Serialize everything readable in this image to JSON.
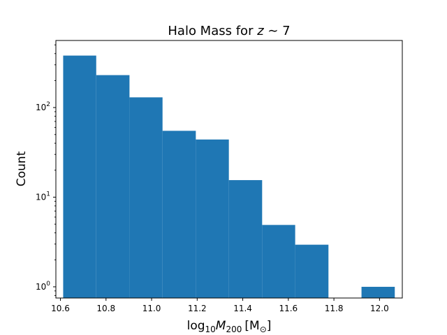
{
  "chart_data": {
    "type": "bar",
    "title": {
      "prefix": "Halo Mass for ",
      "var": "z",
      "suffix": " ∼ 7"
    },
    "xlabel": {
      "prefix": "log",
      "prefix_sub": "10",
      "var": "M",
      "var_sub": "200",
      "unit": "[M",
      "unit_sub": "⊙",
      "unit_close": "]"
    },
    "ylabel": "Count",
    "x_scale": "linear",
    "y_scale": "log",
    "xlim": [
      10.58,
      12.1
    ],
    "ylim": [
      0.75,
      560
    ],
    "bin_edges": [
      10.612,
      10.757,
      10.903,
      11.048,
      11.194,
      11.339,
      11.485,
      11.63,
      11.776,
      11.921,
      12.067
    ],
    "counts": [
      380,
      230,
      130,
      55,
      44,
      15.5,
      4.9,
      2.95,
      0,
      1
    ],
    "bar_color": "#1f77b4",
    "x_ticks": [
      "10.6",
      "10.8",
      "11.0",
      "11.2",
      "11.4",
      "11.6",
      "11.8",
      "12.0"
    ],
    "y_ticks": [
      {
        "base": "10",
        "exp": "0"
      },
      {
        "base": "10",
        "exp": "1"
      },
      {
        "base": "10",
        "exp": "2"
      }
    ]
  }
}
